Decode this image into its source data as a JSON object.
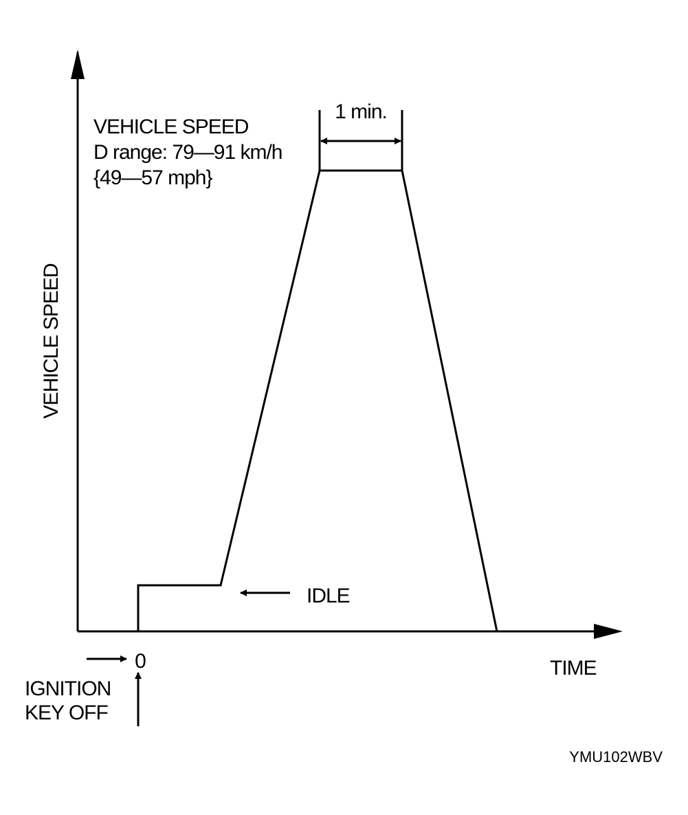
{
  "chart_data": {
    "type": "line",
    "title": "",
    "xlabel": "TIME",
    "ylabel": "VEHICLE SPEED",
    "x_origin_label": "0",
    "grid": false,
    "legend": "none",
    "series": [
      {
        "name": "",
        "points": [
          {
            "x": 0,
            "y": 0
          },
          {
            "x": 0,
            "y": 0.1
          },
          {
            "x": 0.2,
            "y": 0.1
          },
          {
            "x": 0.44,
            "y": 1.0
          },
          {
            "x": 0.64,
            "y": 1.0
          },
          {
            "x": 0.87,
            "y": 0
          }
        ]
      }
    ],
    "xlim": [
      -0.15,
      1.2
    ],
    "ylim": [
      0,
      1.0
    ],
    "annotations": {
      "speed_heading": "VEHICLE SPEED",
      "speed_range_line": "D range: 79—91 km/h",
      "speed_range_mph": "{49—57 mph}",
      "duration": "1 min.",
      "idle": "IDLE",
      "ignition_line1": "IGNITION",
      "ignition_line2": "KEY OFF"
    },
    "figure_code": "YMU102WBV"
  }
}
